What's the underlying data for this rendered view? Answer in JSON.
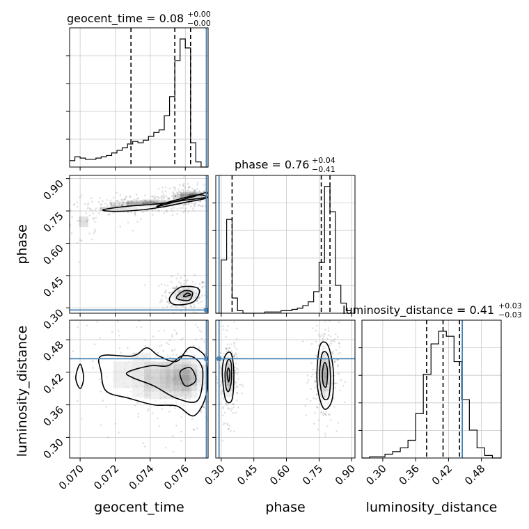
{
  "colors": {
    "truth": "#4682b4",
    "contour": "#000000",
    "grid": "#c8c8c8",
    "background": "#ffffff"
  },
  "chart_data": {
    "type": "corner",
    "parameters": [
      "geocent_time",
      "phase",
      "luminosity_distance"
    ],
    "axis_labels": {
      "geocent_time": "geocent_time",
      "phase": "phase",
      "luminosity_distance": "luminosity_distance"
    },
    "ranges": {
      "geocent_time": [
        0.0694,
        0.0773
      ],
      "phase": [
        0.275,
        0.915
      ],
      "luminosity_distance": [
        0.262,
        0.516
      ]
    },
    "ticks": {
      "geocent_time": [
        "0.070",
        "0.072",
        "0.074",
        "0.076"
      ],
      "phase": [
        "0.30",
        "0.45",
        "0.60",
        "0.75",
        "0.90"
      ],
      "luminosity_distance": [
        "0.30",
        "0.36",
        "0.42",
        "0.48"
      ]
    },
    "truths": {
      "geocent_time": 0.0772,
      "phase": 0.29,
      "luminosity_distance": 0.445
    },
    "titles": [
      {
        "param": "geocent_time",
        "text": "geocent_time = 0.08",
        "plus": "+0.00",
        "minus": "−0.00"
      },
      {
        "param": "phase",
        "text": "phase = 0.76",
        "plus": "+0.04",
        "minus": "−0.41"
      },
      {
        "param": "luminosity_distance",
        "text": "luminosity_distance = 0.41",
        "plus": "+0.03",
        "minus": "−0.03"
      }
    ],
    "quantiles": {
      "geocent_time": [
        0.0729,
        0.0754,
        0.0763
      ],
      "phase": [
        0.35,
        0.76,
        0.8
      ],
      "luminosity_distance": [
        0.38,
        0.41,
        0.44
      ]
    },
    "histograms": {
      "geocent_time": {
        "edges": [
          0.0694,
          0.0697,
          0.07,
          0.0703,
          0.0706,
          0.0709,
          0.0712,
          0.0715,
          0.0718,
          0.0721,
          0.0724,
          0.0727,
          0.073,
          0.0733,
          0.0736,
          0.0739,
          0.0742,
          0.0745,
          0.0748,
          0.0751,
          0.0754,
          0.0757,
          0.076,
          0.0763,
          0.0766,
          0.0769,
          0.0773
        ],
        "counts": [
          0.05,
          0.08,
          0.07,
          0.06,
          0.06,
          0.07,
          0.08,
          0.09,
          0.11,
          0.13,
          0.15,
          0.18,
          0.2,
          0.19,
          0.21,
          0.24,
          0.27,
          0.29,
          0.4,
          0.55,
          0.83,
          1.0,
          0.93,
          0.19,
          0.04,
          0.0
        ]
      },
      "phase": {
        "edges": [
          0.275,
          0.3,
          0.325,
          0.35,
          0.375,
          0.4,
          0.425,
          0.45,
          0.475,
          0.5,
          0.525,
          0.55,
          0.575,
          0.6,
          0.625,
          0.65,
          0.675,
          0.7,
          0.725,
          0.75,
          0.775,
          0.8,
          0.825,
          0.85,
          0.875,
          0.9
        ],
        "counts": [
          0.0,
          0.42,
          0.74,
          0.12,
          0.02,
          0.0,
          0.0,
          0.0,
          0.0,
          0.01,
          0.01,
          0.01,
          0.02,
          0.02,
          0.03,
          0.04,
          0.06,
          0.09,
          0.17,
          0.4,
          1.0,
          0.8,
          0.22,
          0.08,
          0.02
        ]
      },
      "luminosity_distance": {
        "edges": [
          0.262,
          0.276,
          0.29,
          0.304,
          0.318,
          0.332,
          0.346,
          0.36,
          0.374,
          0.388,
          0.402,
          0.416,
          0.43,
          0.444,
          0.458,
          0.472,
          0.486,
          0.5,
          0.516
        ],
        "counts": [
          0.0,
          0.01,
          0.01,
          0.03,
          0.05,
          0.08,
          0.14,
          0.35,
          0.66,
          0.9,
          1.0,
          0.96,
          0.76,
          0.46,
          0.22,
          0.08,
          0.02,
          0.0
        ]
      }
    },
    "contours_2d": {
      "phase_vs_geocent_time": [
        {
          "level": 1,
          "points": [
            [
              0.0713,
              0.755
            ],
            [
              0.0725,
              0.77
            ],
            [
              0.074,
              0.78
            ],
            [
              0.0752,
              0.79
            ],
            [
              0.0764,
              0.815
            ],
            [
              0.0772,
              0.835
            ],
            [
              0.0772,
              0.81
            ],
            [
              0.076,
              0.79
            ],
            [
              0.0748,
              0.77
            ],
            [
              0.0735,
              0.755
            ],
            [
              0.072,
              0.748
            ]
          ]
        },
        {
          "level": 2,
          "points": [
            [
              0.0744,
              0.77
            ],
            [
              0.0756,
              0.795
            ],
            [
              0.0768,
              0.808
            ],
            [
              0.0772,
              0.815
            ],
            [
              0.0768,
              0.825
            ],
            [
              0.0758,
              0.808
            ],
            [
              0.0748,
              0.785
            ]
          ]
        },
        {
          "level": 1,
          "points": [
            [
              0.0751,
              0.345
            ],
            [
              0.0757,
              0.395
            ],
            [
              0.0766,
              0.395
            ],
            [
              0.0768,
              0.37
            ],
            [
              0.0764,
              0.325
            ],
            [
              0.0754,
              0.315
            ]
          ]
        },
        {
          "level": 2,
          "points": [
            [
              0.0755,
              0.345
            ],
            [
              0.0759,
              0.378
            ],
            [
              0.0764,
              0.372
            ],
            [
              0.0762,
              0.335
            ]
          ]
        },
        {
          "level": 3,
          "points": [
            [
              0.0759,
              0.352
            ],
            [
              0.0761,
              0.368
            ],
            [
              0.0763,
              0.36
            ]
          ]
        }
      ],
      "luminosity_distance_vs_geocent_time": [
        {
          "level": 1,
          "points": [
            [
              0.0712,
              0.45
            ],
            [
              0.073,
              0.45
            ],
            [
              0.0738,
              0.465
            ],
            [
              0.0745,
              0.45
            ],
            [
              0.0755,
              0.44
            ],
            [
              0.0762,
              0.465
            ],
            [
              0.0768,
              0.46
            ],
            [
              0.0772,
              0.44
            ],
            [
              0.0772,
              0.38
            ],
            [
              0.0765,
              0.34
            ],
            [
              0.0755,
              0.358
            ],
            [
              0.0742,
              0.36
            ],
            [
              0.0728,
              0.372
            ],
            [
              0.0715,
              0.385
            ],
            [
              0.0712,
              0.42
            ]
          ]
        },
        {
          "level": 2,
          "points": [
            [
              0.0727,
              0.42
            ],
            [
              0.074,
              0.432
            ],
            [
              0.075,
              0.432
            ],
            [
              0.0758,
              0.45
            ],
            [
              0.0766,
              0.445
            ],
            [
              0.077,
              0.42
            ],
            [
              0.0767,
              0.368
            ],
            [
              0.0755,
              0.372
            ],
            [
              0.0742,
              0.395
            ],
            [
              0.073,
              0.41
            ]
          ]
        },
        {
          "level": 3,
          "points": [
            [
              0.0757,
              0.42
            ],
            [
              0.0763,
              0.428
            ],
            [
              0.0766,
              0.405
            ],
            [
              0.076,
              0.395
            ]
          ]
        },
        {
          "level": 1,
          "points": [
            [
              0.06975,
              0.41
            ],
            [
              0.07,
              0.435
            ],
            [
              0.0702,
              0.41
            ],
            [
              0.07,
              0.39
            ]
          ]
        }
      ],
      "luminosity_distance_vs_phase": [
        {
          "level": 1,
          "points": [
            [
              0.305,
              0.42
            ],
            [
              0.318,
              0.45
            ],
            [
              0.345,
              0.455
            ],
            [
              0.358,
              0.42
            ],
            [
              0.35,
              0.37
            ],
            [
              0.32,
              0.37
            ]
          ]
        },
        {
          "level": 2,
          "points": [
            [
              0.318,
              0.42
            ],
            [
              0.33,
              0.442
            ],
            [
              0.345,
              0.438
            ],
            [
              0.347,
              0.405
            ],
            [
              0.335,
              0.385
            ],
            [
              0.322,
              0.392
            ]
          ]
        },
        {
          "level": 3,
          "points": [
            [
              0.327,
              0.418
            ],
            [
              0.333,
              0.428
            ],
            [
              0.34,
              0.418
            ],
            [
              0.334,
              0.402
            ]
          ]
        },
        {
          "level": 1,
          "points": [
            [
              0.74,
              0.42
            ],
            [
              0.755,
              0.47
            ],
            [
              0.79,
              0.47
            ],
            [
              0.815,
              0.425
            ],
            [
              0.81,
              0.37
            ],
            [
              0.775,
              0.352
            ],
            [
              0.748,
              0.38
            ]
          ]
        },
        {
          "level": 2,
          "points": [
            [
              0.752,
              0.42
            ],
            [
              0.765,
              0.455
            ],
            [
              0.79,
              0.452
            ],
            [
              0.802,
              0.415
            ],
            [
              0.795,
              0.375
            ],
            [
              0.77,
              0.372
            ],
            [
              0.756,
              0.395
            ]
          ]
        },
        {
          "level": 3,
          "points": [
            [
              0.765,
              0.418
            ],
            [
              0.775,
              0.438
            ],
            [
              0.788,
              0.425
            ],
            [
              0.784,
              0.395
            ],
            [
              0.77,
              0.397
            ]
          ]
        }
      ]
    },
    "density_blobs": {
      "phase_vs_geocent_time": [
        {
          "x": 0.076,
          "y": 0.36,
          "sx": 0.0003,
          "sy": 0.018,
          "w": 0.9
        },
        {
          "x": 0.0764,
          "y": 0.82,
          "sx": 0.0005,
          "sy": 0.012,
          "w": 0.7
        },
        {
          "x": 0.074,
          "y": 0.785,
          "sx": 0.001,
          "sy": 0.01,
          "w": 0.55
        },
        {
          "x": 0.0722,
          "y": 0.76,
          "sx": 0.0008,
          "sy": 0.012,
          "w": 0.3
        },
        {
          "x": 0.0702,
          "y": 0.7,
          "sx": 0.0006,
          "sy": 0.03,
          "w": 0.15
        }
      ],
      "luminosity_distance_vs_geocent_time": [
        {
          "x": 0.076,
          "y": 0.41,
          "sx": 0.0005,
          "sy": 0.018,
          "w": 0.9
        },
        {
          "x": 0.075,
          "y": 0.405,
          "sx": 0.001,
          "sy": 0.025,
          "w": 0.45
        },
        {
          "x": 0.0735,
          "y": 0.415,
          "sx": 0.0012,
          "sy": 0.03,
          "w": 0.25
        }
      ],
      "luminosity_distance_vs_phase": [
        {
          "x": 0.335,
          "y": 0.41,
          "sx": 0.01,
          "sy": 0.018,
          "w": 0.9
        },
        {
          "x": 0.775,
          "y": 0.415,
          "sx": 0.015,
          "sy": 0.022,
          "w": 0.95
        }
      ]
    }
  }
}
